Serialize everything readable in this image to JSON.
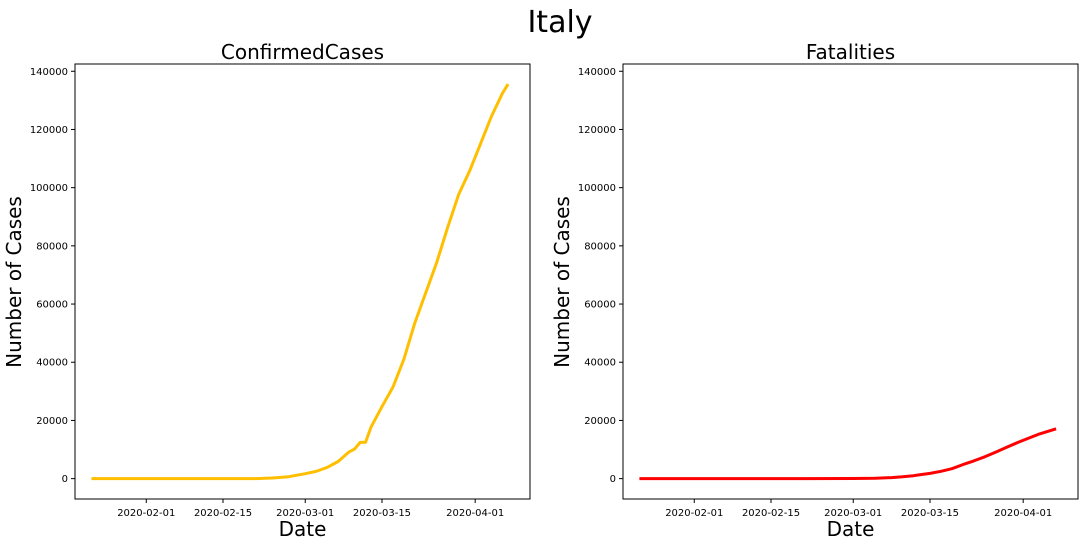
{
  "suptitle": "Italy",
  "chart_data": [
    {
      "type": "line",
      "title": "ConfirmedCases",
      "xlabel": "Date",
      "ylabel": "Number of Cases",
      "xlim": [
        "2020-01-19",
        "2020-04-11"
      ],
      "ylim": [
        -7000,
        142500
      ],
      "x_ticks": [
        "2020-02-01",
        "2020-02-15",
        "2020-03-01",
        "2020-03-15",
        "2020-04-01"
      ],
      "y_ticks": [
        0,
        20000,
        40000,
        60000,
        80000,
        100000,
        120000,
        140000
      ],
      "color": "#ffbf00",
      "series": [
        {
          "points": [
            [
              "2020-01-22",
              0
            ],
            [
              "2020-02-01",
              0
            ],
            [
              "2020-02-15",
              0
            ],
            [
              "2020-02-21",
              20
            ],
            [
              "2020-02-24",
              229
            ],
            [
              "2020-02-27",
              655
            ],
            [
              "2020-03-01",
              1694
            ],
            [
              "2020-03-03",
              2502
            ],
            [
              "2020-03-05",
              3858
            ],
            [
              "2020-03-07",
              5883
            ],
            [
              "2020-03-09",
              9172
            ],
            [
              "2020-03-10",
              10149
            ],
            [
              "2020-03-11",
              12462
            ],
            [
              "2020-03-12",
              12462
            ],
            [
              "2020-03-13",
              17660
            ],
            [
              "2020-03-15",
              24747
            ],
            [
              "2020-03-17",
              31506
            ],
            [
              "2020-03-19",
              41035
            ],
            [
              "2020-03-21",
              53578
            ],
            [
              "2020-03-23",
              63927
            ],
            [
              "2020-03-25",
              74386
            ],
            [
              "2020-03-27",
              86498
            ],
            [
              "2020-03-29",
              97689
            ],
            [
              "2020-03-31",
              105792
            ],
            [
              "2020-04-02",
              115242
            ],
            [
              "2020-04-04",
              124632
            ],
            [
              "2020-04-06",
              132547
            ],
            [
              "2020-04-07",
              135586
            ]
          ]
        }
      ]
    },
    {
      "type": "line",
      "title": "Fatalities",
      "xlabel": "Date",
      "ylabel": "Number of Cases",
      "xlim": [
        "2020-01-19",
        "2020-04-11"
      ],
      "ylim": [
        -7000,
        142500
      ],
      "x_ticks": [
        "2020-02-01",
        "2020-02-15",
        "2020-03-01",
        "2020-03-15",
        "2020-04-01"
      ],
      "y_ticks": [
        0,
        20000,
        40000,
        60000,
        80000,
        100000,
        120000,
        140000
      ],
      "color": "#ff0000",
      "series": [
        {
          "points": [
            [
              "2020-01-22",
              0
            ],
            [
              "2020-02-01",
              0
            ],
            [
              "2020-02-21",
              1
            ],
            [
              "2020-03-01",
              34
            ],
            [
              "2020-03-05",
              148
            ],
            [
              "2020-03-08",
              366
            ],
            [
              "2020-03-10",
              631
            ],
            [
              "2020-03-12",
              1016
            ],
            [
              "2020-03-13",
              1266
            ],
            [
              "2020-03-15",
              1809
            ],
            [
              "2020-03-17",
              2503
            ],
            [
              "2020-03-19",
              3405
            ],
            [
              "2020-03-21",
              4825
            ],
            [
              "2020-03-23",
              6077
            ],
            [
              "2020-03-25",
              7503
            ],
            [
              "2020-03-27",
              9134
            ],
            [
              "2020-03-29",
              10779
            ],
            [
              "2020-03-31",
              12428
            ],
            [
              "2020-04-02",
              13915
            ],
            [
              "2020-04-04",
              15362
            ],
            [
              "2020-04-07",
              17127
            ]
          ]
        }
      ]
    }
  ]
}
